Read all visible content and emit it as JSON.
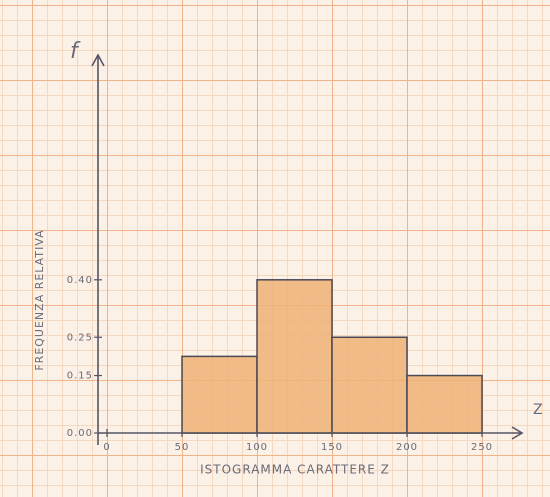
{
  "chart_data": {
    "type": "histogram",
    "x_label": "ISTOGRAMMA CARATTERE Z",
    "y_label": "FREQUENZA RELATIVA",
    "y_axis_letter": "f",
    "x_axis_letter": "Z",
    "bins": [
      50,
      100,
      150,
      200,
      250
    ],
    "values": [
      0.2,
      0.4,
      0.25,
      0.15
    ],
    "color": "#eeb277",
    "xlim": [
      0,
      280
    ],
    "ylim": [
      0,
      1.0
    ],
    "xticks": [
      0,
      50,
      100,
      150,
      200,
      250
    ],
    "yticks": [
      {
        "value": 0,
        "label": "0.00"
      },
      0.15,
      0.25,
      {
        "value": 0.4,
        "label": "0.40"
      }
    ]
  }
}
